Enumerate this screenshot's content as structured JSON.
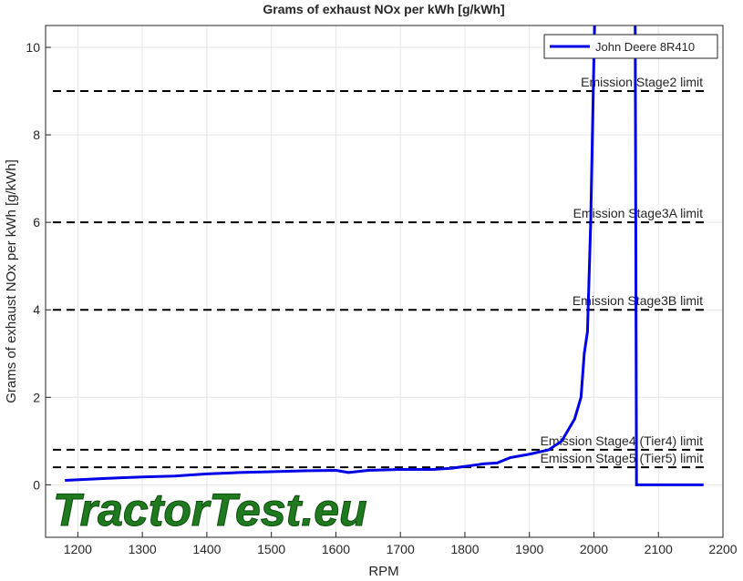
{
  "chart_data": {
    "type": "line",
    "title": "Grams of exhaust NOx per kWh [g/kWh]",
    "xlabel": "RPM",
    "ylabel": "Grams of exhaust NOx per kWh [g/kWh]",
    "watermark": "TractorTest.eu",
    "xlim": [
      1150,
      2200
    ],
    "ylim": [
      -1.2,
      10.5
    ],
    "xticks": [
      1200,
      1300,
      1400,
      1500,
      1600,
      1700,
      1800,
      1900,
      2000,
      2100,
      2200
    ],
    "yticks": [
      0,
      2,
      4,
      6,
      8,
      10
    ],
    "grid": true,
    "legend": "top-right",
    "x": [
      1180,
      1250,
      1300,
      1350,
      1400,
      1450,
      1500,
      1550,
      1600,
      1620,
      1650,
      1700,
      1750,
      1780,
      1800,
      1830,
      1850,
      1870,
      1900,
      1930,
      1950,
      1970,
      1980,
      1985,
      1990,
      1995,
      2001,
      2030,
      2064,
      2066,
      2170
    ],
    "series": [
      {
        "name": "John Deere 8R410",
        "color": "#0000e6",
        "values": [
          0.1,
          0.15,
          0.18,
          0.2,
          0.25,
          0.28,
          0.3,
          0.32,
          0.33,
          0.28,
          0.33,
          0.35,
          0.35,
          0.38,
          0.42,
          0.48,
          0.5,
          0.62,
          0.7,
          0.8,
          1.0,
          1.5,
          2.0,
          3.0,
          3.5,
          6,
          10.5,
          null,
          10.5,
          0,
          0
        ]
      }
    ],
    "limits": [
      {
        "label": "Emission Stage2 limit",
        "value": 9
      },
      {
        "label": "Emission Stage3A limit",
        "value": 6
      },
      {
        "label": "Emission Stage3B limit",
        "value": 4
      },
      {
        "label": "Emission Stage4 (Tier4) limit",
        "value": 0.8
      },
      {
        "label": "Emission Stage5 (Tier5) limit",
        "value": 0.4
      }
    ]
  }
}
